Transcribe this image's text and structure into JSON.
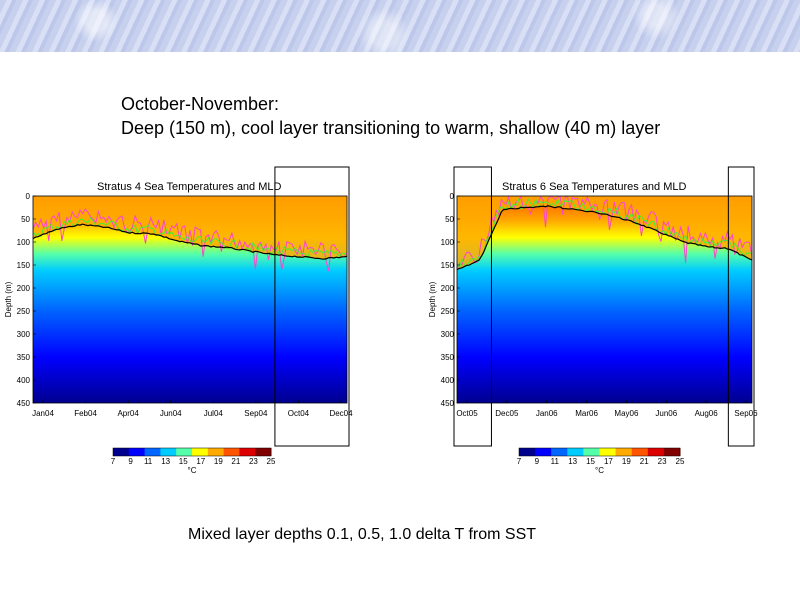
{
  "heading": {
    "line1": "October-November:",
    "line2": "Deep (150 m), cool layer transitioning to warm, shallow (40 m) layer"
  },
  "footnote": "Mixed layer depths  0.1, 0.5, 1.0 delta T from SST",
  "colormap": [
    "#00008f",
    "#0000ff",
    "#0066ff",
    "#00ccff",
    "#55ffaa",
    "#ffff00",
    "#ffaa00",
    "#ff5500",
    "#dd0000",
    "#800000"
  ],
  "line_colors": {
    "mld_0_1": "#ff44cc",
    "mld_0_5": "#44ee33",
    "mld_1_0": "#000000"
  },
  "chart_data": [
    {
      "type": "heatmap",
      "title": "Stratus 4 Sea Temperatures and MLD",
      "ylabel": "Depth (m)",
      "ylim": [
        0,
        450
      ],
      "y_ticks": [
        "0",
        "50",
        "100",
        "150",
        "200",
        "250",
        "300",
        "350",
        "400",
        "450"
      ],
      "x_ticks": [
        "Jan04",
        "Feb04",
        "Apr04",
        "Jun04",
        "Jul04",
        "Sep04",
        "Oct04",
        "Dec04"
      ],
      "colorbar": {
        "min": 7,
        "max": 25,
        "ticks": [
          "7",
          "9",
          "11",
          "13",
          "15",
          "17",
          "19",
          "21",
          "23",
          "25"
        ],
        "label": "°C"
      },
      "series": [
        {
          "name": "MLD 0.1 delta T",
          "color": "#ff44cc"
        },
        {
          "name": "MLD 0.5 delta T",
          "color": "#44ee33"
        },
        {
          "name": "MLD 1.0 delta T",
          "color": "#000000",
          "depth_profile": [
            92,
            72,
            62,
            68,
            80,
            82,
            98,
            108,
            112,
            120,
            128,
            132,
            136,
            132
          ]
        }
      ],
      "highlight_ranges": [
        [
          0.78,
          1.0
        ]
      ]
    },
    {
      "type": "heatmap",
      "title": "Stratus 6 Sea Temperatures and MLD",
      "ylabel": "Depth (m)",
      "ylim": [
        0,
        450
      ],
      "y_ticks": [
        "0",
        "50",
        "100",
        "150",
        "200",
        "250",
        "300",
        "350",
        "400",
        "450"
      ],
      "x_ticks": [
        "Oct05",
        "Dec05",
        "Jan06",
        "Mar06",
        "May06",
        "Jun06",
        "Aug06",
        "Sep06"
      ],
      "colorbar": {
        "min": 7,
        "max": 25,
        "ticks": [
          "7",
          "9",
          "11",
          "13",
          "15",
          "17",
          "19",
          "21",
          "23",
          "25"
        ],
        "label": "°C"
      },
      "series": [
        {
          "name": "MLD 0.1 delta T",
          "color": "#ff44cc"
        },
        {
          "name": "MLD 0.5 delta T",
          "color": "#44ee33"
        },
        {
          "name": "MLD 1.0 delta T",
          "color": "#000000",
          "depth_profile": [
            160,
            140,
            30,
            25,
            22,
            28,
            35,
            45,
            60,
            80,
            100,
            110,
            115,
            140
          ]
        }
      ],
      "highlight_ranges": [
        [
          0.0,
          0.11
        ],
        [
          0.93,
          1.0
        ]
      ]
    }
  ]
}
